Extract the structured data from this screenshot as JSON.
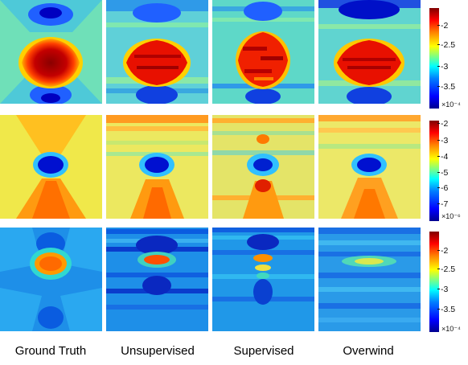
{
  "columns": [
    "Ground Truth",
    "Unsupervised",
    "Supervised",
    "Overwind"
  ],
  "colorbars": [
    {
      "ticks": [
        "-2",
        "-2.5",
        "-3",
        "-3.5"
      ],
      "scale": "×10⁻⁴"
    },
    {
      "ticks": [
        "-2",
        "-3",
        "-4",
        "-5",
        "-6",
        "-7"
      ],
      "scale": "×10⁻⁶"
    },
    {
      "ticks": [
        "-2",
        "-2.5",
        "-3",
        "-3.5"
      ],
      "scale": "×10⁻⁴"
    }
  ],
  "colormap": "jet",
  "rows": [
    {
      "background": "#5fd6c8",
      "center": "dark-red",
      "lobes": "blue"
    },
    {
      "background": "#e8e85a",
      "center": "blue",
      "lobes": "orange"
    },
    {
      "background": "#1f96e6",
      "center": "orange",
      "lobes": "dark-blue"
    }
  ]
}
